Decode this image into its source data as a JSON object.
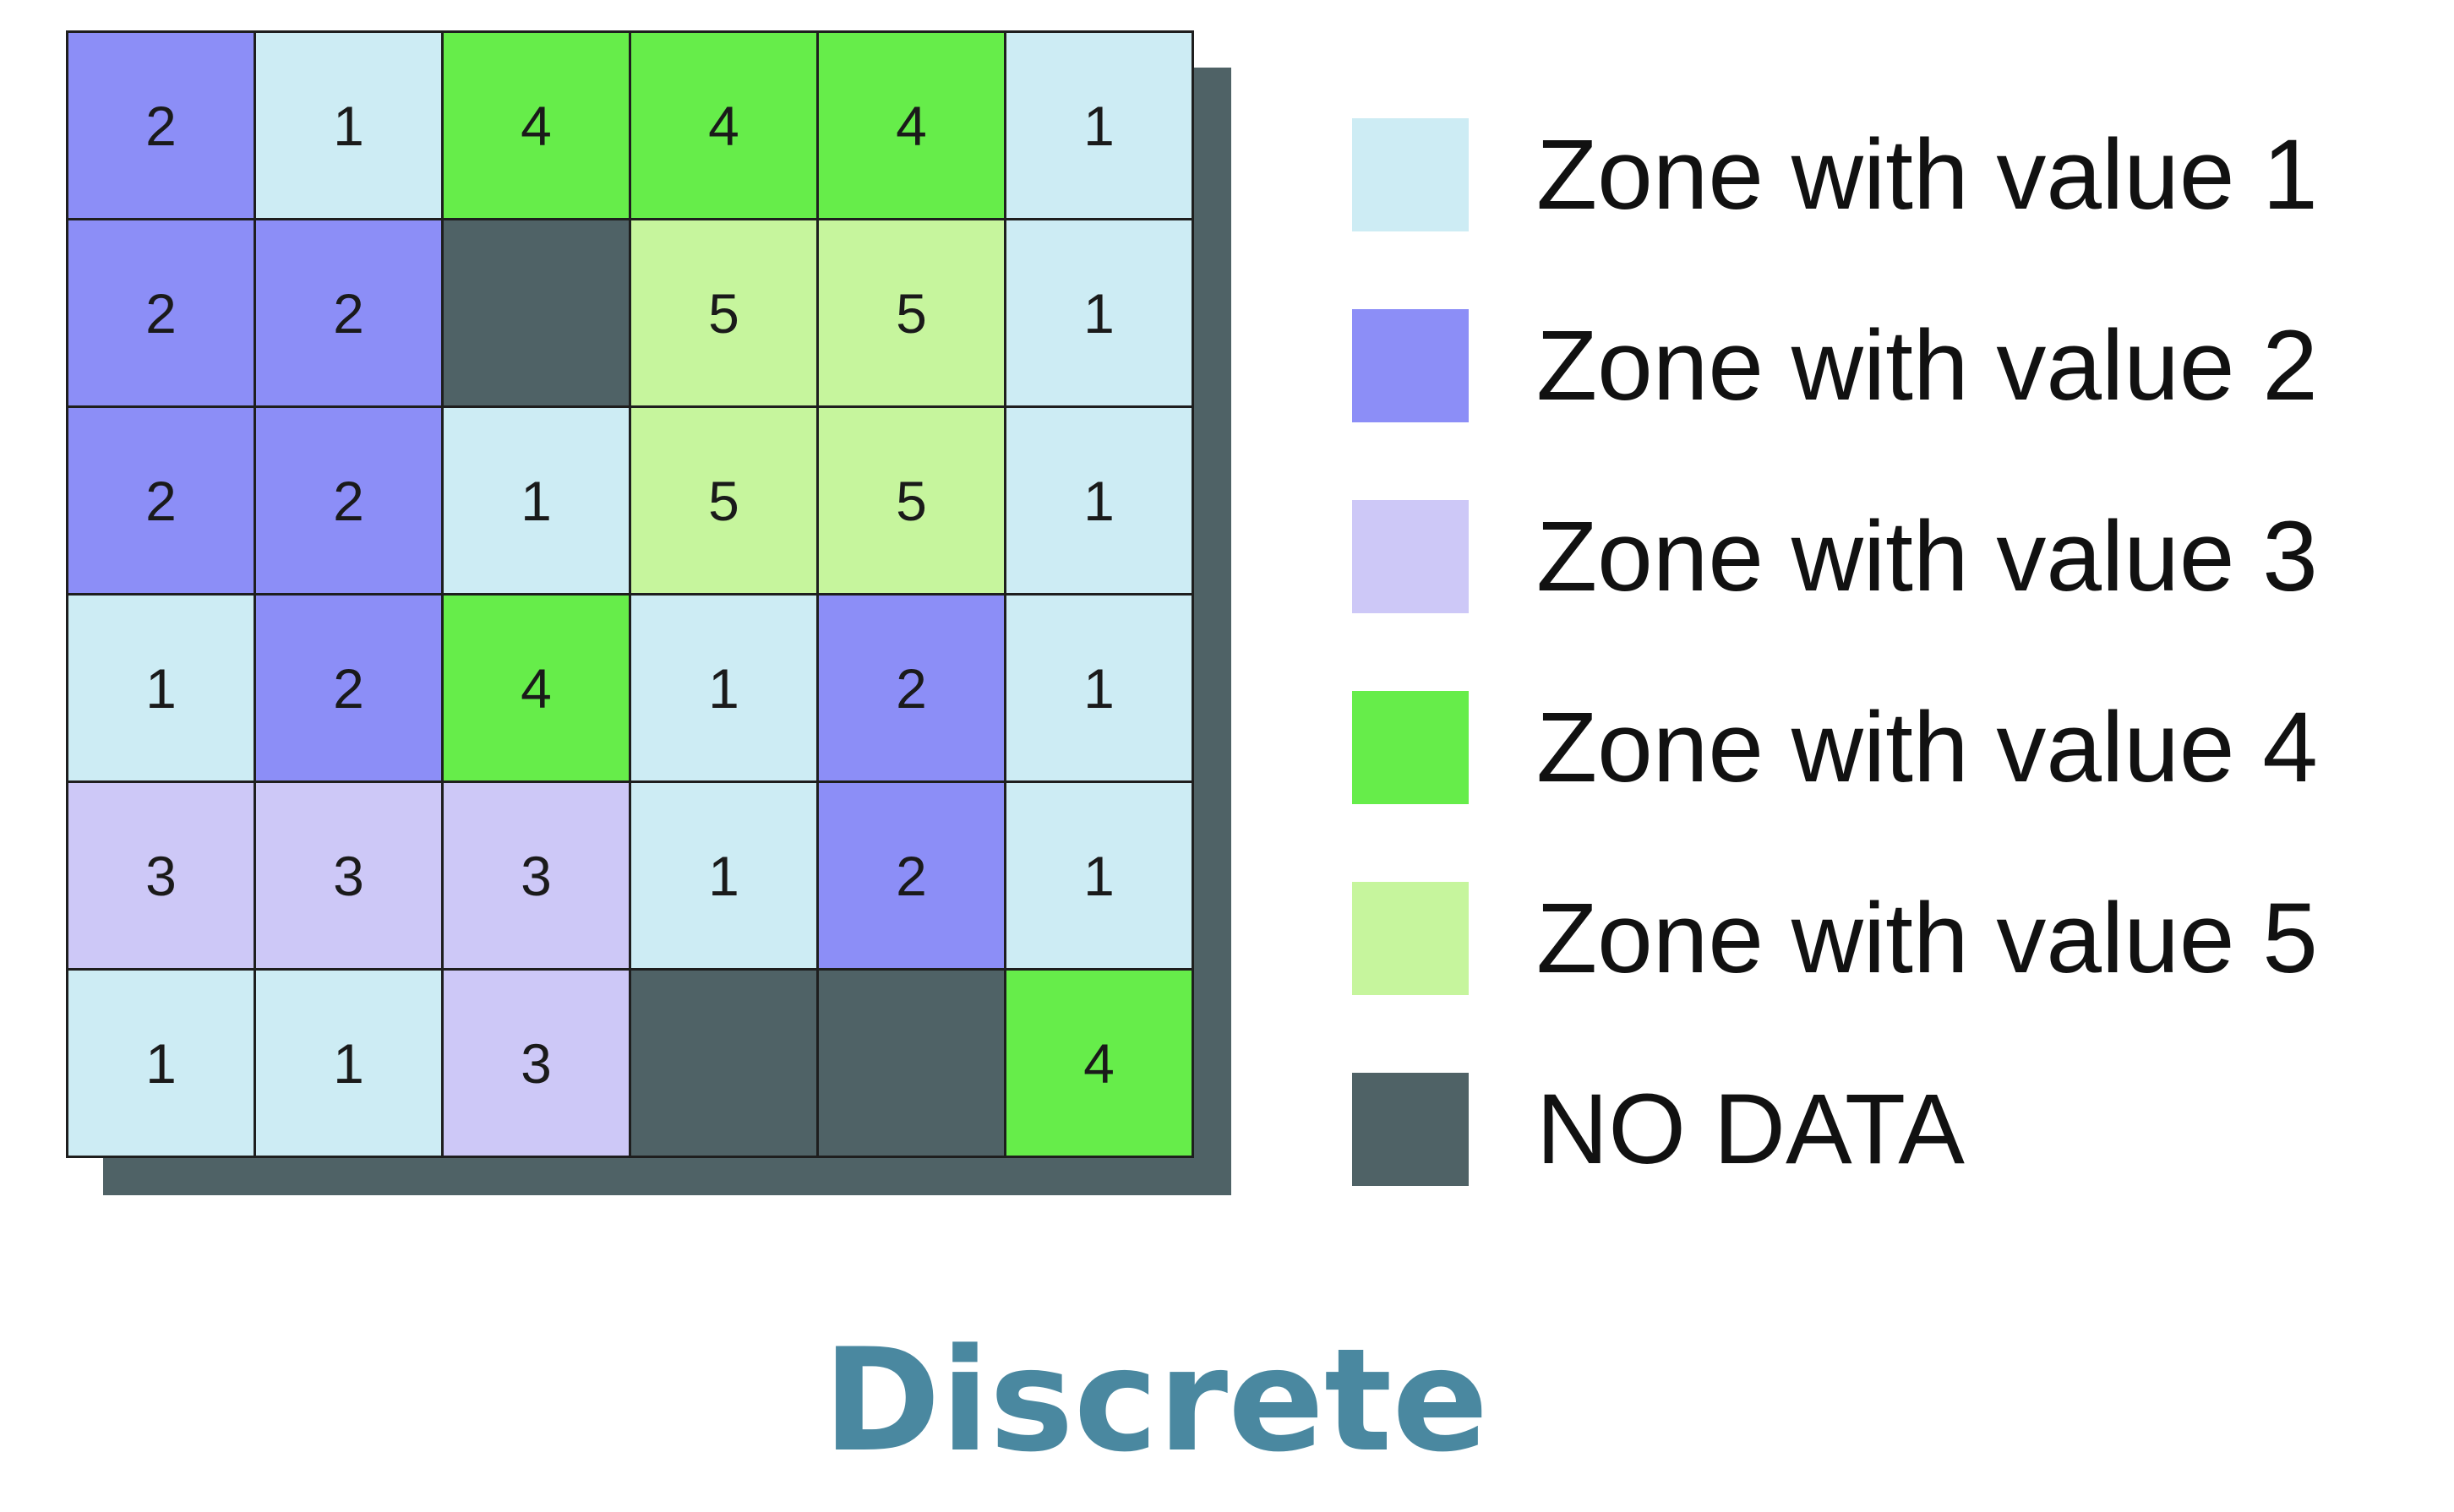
{
  "zone_colors": {
    "1": "#cdecf4",
    "2": "#8c8ef7",
    "3": "#cdc8f7",
    "4": "#66ed4a",
    "5": "#c6f59d",
    "nodata": "#4f6266"
  },
  "grid": [
    [
      "2",
      "1",
      "4",
      "4",
      "4",
      "1"
    ],
    [
      "2",
      "2",
      "",
      "5",
      "5",
      "1"
    ],
    [
      "2",
      "2",
      "1",
      "5",
      "5",
      "1"
    ],
    [
      "1",
      "2",
      "4",
      "1",
      "2",
      "1"
    ],
    [
      "3",
      "3",
      "3",
      "1",
      "2",
      "1"
    ],
    [
      "1",
      "1",
      "3",
      "",
      "",
      "4"
    ]
  ],
  "legend": [
    {
      "label": "Zone with value 1",
      "color_key": "1"
    },
    {
      "label": "Zone with value 2",
      "color_key": "2"
    },
    {
      "label": "Zone with value 3",
      "color_key": "3"
    },
    {
      "label": "Zone with value 4",
      "color_key": "4"
    },
    {
      "label": "Zone with value 5",
      "color_key": "5"
    },
    {
      "label": "NO DATA",
      "color_key": "nodata"
    }
  ],
  "caption": "Discrete"
}
